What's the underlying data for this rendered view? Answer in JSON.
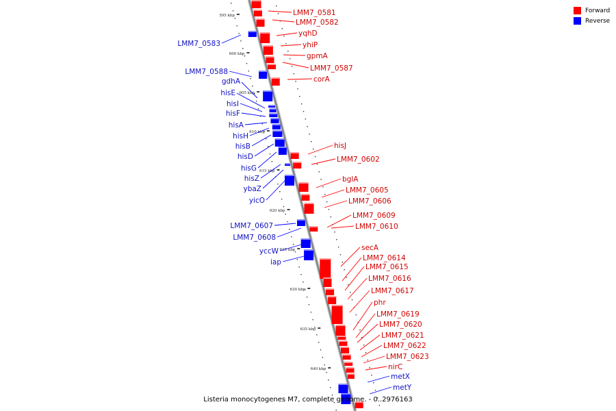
{
  "legend": [
    {
      "label": "Forward",
      "color": "#ff0000"
    },
    {
      "label": "Reverse",
      "color": "#0000ff"
    }
  ],
  "caption": "Listeria monocytogenes M7, complete genome. - 0..2976163",
  "colors": {
    "forward": "#ff0000",
    "reverse": "#0000ff",
    "forward_label": "#d10000",
    "reverse_label": "#1010c0",
    "backbone": "#808080"
  },
  "tick_labels": [
    "595 kbp",
    "600 kbp",
    "605 kbp",
    "610 kbp",
    "615 kbp",
    "620 kbp",
    "625 kbp",
    "630 kbp",
    "635 kbp",
    "640 kbp"
  ],
  "genes": [
    {
      "name": "LMM7_0581",
      "strand": "forward"
    },
    {
      "name": "LMM7_0582",
      "strand": "forward"
    },
    {
      "name": "yqhD",
      "strand": "forward"
    },
    {
      "name": "yhiP",
      "strand": "forward"
    },
    {
      "name": "gpmA",
      "strand": "forward"
    },
    {
      "name": "LMM7_0587",
      "strand": "forward"
    },
    {
      "name": "corA",
      "strand": "forward"
    },
    {
      "name": "LMM7_0583",
      "strand": "reverse"
    },
    {
      "name": "LMM7_0588",
      "strand": "reverse"
    },
    {
      "name": "gdhA",
      "strand": "reverse"
    },
    {
      "name": "hisE",
      "strand": "reverse"
    },
    {
      "name": "hisI",
      "strand": "reverse"
    },
    {
      "name": "hisF",
      "strand": "reverse"
    },
    {
      "name": "hisA",
      "strand": "reverse"
    },
    {
      "name": "hisH",
      "strand": "reverse"
    },
    {
      "name": "hisB",
      "strand": "reverse"
    },
    {
      "name": "hisD",
      "strand": "reverse"
    },
    {
      "name": "hisG",
      "strand": "reverse"
    },
    {
      "name": "hisZ",
      "strand": "reverse"
    },
    {
      "name": "ybaZ",
      "strand": "reverse"
    },
    {
      "name": "yicO",
      "strand": "reverse"
    },
    {
      "name": "hisJ",
      "strand": "forward"
    },
    {
      "name": "LMM7_0602",
      "strand": "forward"
    },
    {
      "name": "bglA",
      "strand": "forward"
    },
    {
      "name": "LMM7_0605",
      "strand": "forward"
    },
    {
      "name": "LMM7_0606",
      "strand": "forward"
    },
    {
      "name": "LMM7_0609",
      "strand": "forward"
    },
    {
      "name": "LMM7_0610",
      "strand": "forward"
    },
    {
      "name": "LMM7_0607",
      "strand": "reverse"
    },
    {
      "name": "LMM7_0608",
      "strand": "reverse"
    },
    {
      "name": "yccW",
      "strand": "reverse"
    },
    {
      "name": "iap",
      "strand": "reverse"
    },
    {
      "name": "secA",
      "strand": "forward"
    },
    {
      "name": "LMM7_0614",
      "strand": "forward"
    },
    {
      "name": "LMM7_0615",
      "strand": "forward"
    },
    {
      "name": "LMM7_0616",
      "strand": "forward"
    },
    {
      "name": "LMM7_0617",
      "strand": "forward"
    },
    {
      "name": "phr",
      "strand": "forward"
    },
    {
      "name": "LMM7_0619",
      "strand": "forward"
    },
    {
      "name": "LMM7_0620",
      "strand": "forward"
    },
    {
      "name": "LMM7_0621",
      "strand": "forward"
    },
    {
      "name": "LMM7_0622",
      "strand": "forward"
    },
    {
      "name": "LMM7_0623",
      "strand": "forward"
    },
    {
      "name": "nirC",
      "strand": "forward"
    },
    {
      "name": "metX",
      "strand": "reverse"
    },
    {
      "name": "metY",
      "strand": "reverse"
    }
  ]
}
